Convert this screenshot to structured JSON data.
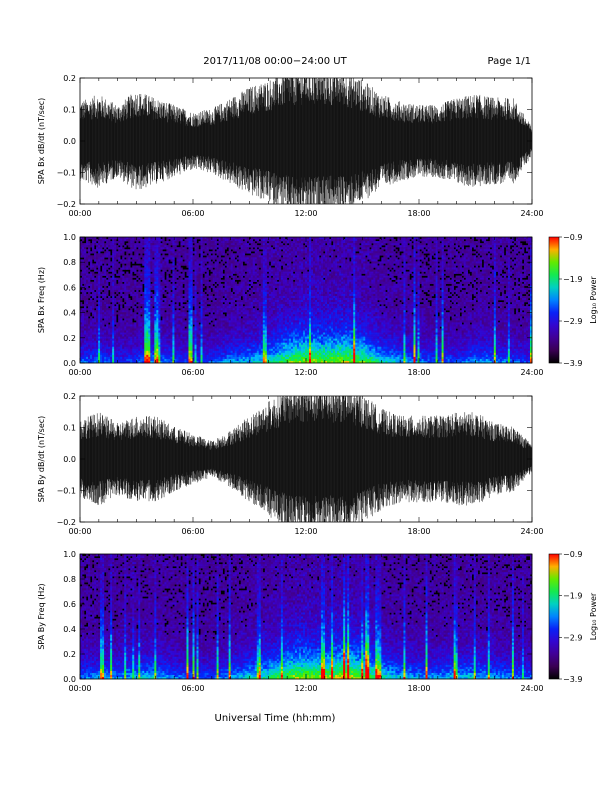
{
  "header": {
    "title": "2017/11/08  00:00−24:00 UT",
    "page": "Page 1/1"
  },
  "xaxis": {
    "label": "Universal Time (hh:mm)",
    "ticks": [
      "00:00",
      "06:00",
      "12:00",
      "18:00",
      "24:00"
    ]
  },
  "chart_data": [
    {
      "type": "line",
      "ylabel": "SPA Bx dB/dt (nT/sec)",
      "xlim": [
        0,
        24
      ],
      "ylim": [
        -0.2,
        0.2
      ],
      "yticks": [
        "0.2",
        "0.1",
        "0.0",
        "−0.1",
        "−0.2"
      ],
      "envelope": {
        "hours": [
          0,
          1,
          2,
          3,
          4,
          5,
          6,
          7,
          8,
          9,
          10,
          11,
          12,
          13,
          14,
          15,
          16,
          17,
          18,
          19,
          20,
          21,
          22,
          23,
          24
        ],
        "amplitude": [
          0.11,
          0.13,
          0.1,
          0.14,
          0.12,
          0.1,
          0.08,
          0.09,
          0.12,
          0.15,
          0.17,
          0.2,
          0.21,
          0.2,
          0.2,
          0.17,
          0.13,
          0.11,
          0.1,
          0.1,
          0.12,
          0.13,
          0.12,
          0.12,
          0.04
        ]
      }
    },
    {
      "type": "heatmap",
      "ylabel": "SPA Bx Freq (Hz)",
      "xlim": [
        0,
        24
      ],
      "ylim": [
        0.0,
        1.0
      ],
      "yticks": [
        "1.0",
        "0.8",
        "0.6",
        "0.4",
        "0.2",
        "0.0"
      ],
      "colorbar": {
        "label": "Log₁₀ Power",
        "ticks": [
          "−0.9",
          "−1.9",
          "−2.9",
          "−3.9"
        ],
        "range": [
          -3.9,
          -0.9
        ]
      },
      "activity": {
        "hours": [
          0,
          1,
          2,
          3,
          4,
          5,
          6,
          7,
          8,
          9,
          10,
          11,
          12,
          13,
          14,
          15,
          16,
          17,
          18,
          19,
          20,
          21,
          22,
          23,
          24
        ],
        "level": [
          0.35,
          0.4,
          0.3,
          0.35,
          0.45,
          0.35,
          0.3,
          0.35,
          0.45,
          0.5,
          0.6,
          0.75,
          0.85,
          0.8,
          0.85,
          0.75,
          0.55,
          0.45,
          0.4,
          0.35,
          0.35,
          0.45,
          0.4,
          0.35,
          0.3
        ]
      }
    },
    {
      "type": "line",
      "ylabel": "SPA By dB/dt (nT/sec)",
      "xlim": [
        0,
        24
      ],
      "ylim": [
        -0.2,
        0.2
      ],
      "yticks": [
        "0.2",
        "0.1",
        "0.0",
        "−0.1",
        "−0.2"
      ],
      "envelope": {
        "hours": [
          0,
          1,
          2,
          3,
          4,
          5,
          6,
          7,
          8,
          9,
          10,
          11,
          12,
          13,
          14,
          15,
          16,
          17,
          18,
          19,
          20,
          21,
          22,
          23,
          24
        ],
        "amplitude": [
          0.11,
          0.13,
          0.1,
          0.12,
          0.12,
          0.09,
          0.07,
          0.05,
          0.08,
          0.12,
          0.16,
          0.2,
          0.21,
          0.21,
          0.21,
          0.18,
          0.14,
          0.12,
          0.12,
          0.12,
          0.13,
          0.13,
          0.1,
          0.09,
          0.04
        ]
      }
    },
    {
      "type": "heatmap",
      "ylabel": "SPA By Freq (Hz)",
      "xlim": [
        0,
        24
      ],
      "ylim": [
        0.0,
        1.0
      ],
      "yticks": [
        "1.0",
        "0.8",
        "0.6",
        "0.4",
        "0.2",
        "0.0"
      ],
      "colorbar": {
        "label": "Log₁₀ Power",
        "ticks": [
          "−0.9",
          "−1.9",
          "−2.9",
          "−3.9"
        ],
        "range": [
          -3.9,
          -0.9
        ]
      },
      "activity": {
        "hours": [
          0,
          1,
          2,
          3,
          4,
          5,
          6,
          7,
          8,
          9,
          10,
          11,
          12,
          13,
          14,
          15,
          16,
          17,
          18,
          19,
          20,
          21,
          22,
          23,
          24
        ],
        "level": [
          0.4,
          0.45,
          0.45,
          0.5,
          0.5,
          0.4,
          0.35,
          0.35,
          0.45,
          0.55,
          0.65,
          0.8,
          0.85,
          0.8,
          0.9,
          0.8,
          0.6,
          0.5,
          0.45,
          0.45,
          0.5,
          0.5,
          0.45,
          0.4,
          0.35
        ]
      }
    }
  ]
}
